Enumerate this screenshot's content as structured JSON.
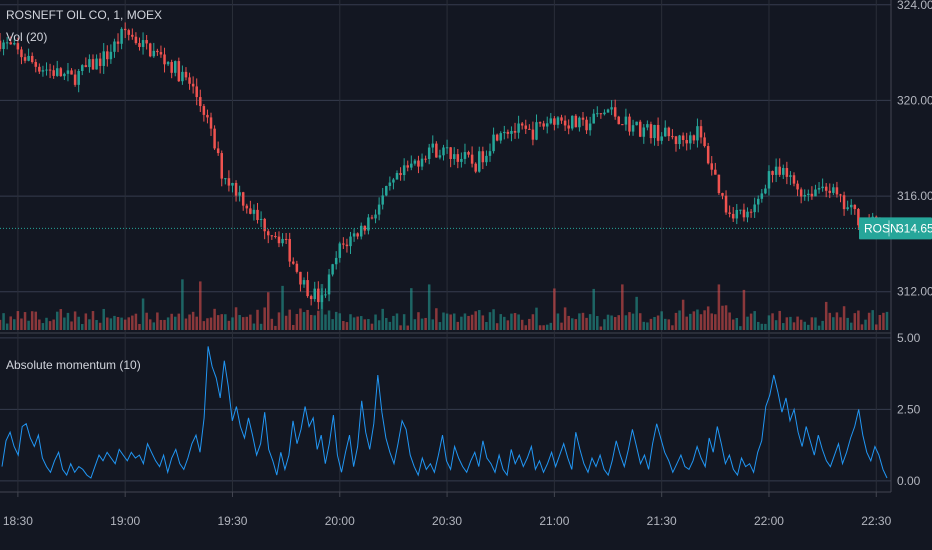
{
  "header": {
    "symbol_title": "ROSNEFT OIL CO, 1, MOEX",
    "volume_label": "Vol (20)"
  },
  "price_badge": {
    "symbol": "ROSN",
    "price": "314.65"
  },
  "indicator": {
    "label": "Absolute momentum (10)"
  },
  "colors": {
    "background": "#131722",
    "grid": "#363c4e",
    "axis_text": "#b2b5be",
    "up": "#26a69a",
    "down": "#ef5350",
    "momentum_line": "#2196f3",
    "badge": "#26a69a"
  },
  "chart_data": [
    {
      "type": "candlestick",
      "title": "ROSNEFT OIL CO, 1, MOEX",
      "y_ticks": [
        "324.00",
        "320.00",
        "316.00",
        "312.00"
      ],
      "ylim": [
        310.4,
        324.2
      ],
      "last_price": 314.65,
      "x_ticks": [
        "18:30",
        "19:00",
        "19:30",
        "20:00",
        "20:30",
        "21:00",
        "21:30",
        "22:00",
        "22:30"
      ],
      "time_range": [
        "18:25",
        "22:33"
      ],
      "close_anchors": [
        [
          "18:25",
          322.5
        ],
        [
          "18:35",
          321.5
        ],
        [
          "18:45",
          320.9
        ],
        [
          "18:55",
          321.9
        ],
        [
          "19:00",
          322.9
        ],
        [
          "19:05",
          322.3
        ],
        [
          "19:12",
          321.6
        ],
        [
          "19:18",
          320.7
        ],
        [
          "19:22",
          319.6
        ],
        [
          "19:27",
          317.0
        ],
        [
          "19:32",
          316.1
        ],
        [
          "19:37",
          315.0
        ],
        [
          "19:44",
          314.2
        ],
        [
          "19:50",
          312.3
        ],
        [
          "19:55",
          311.6
        ],
        [
          "20:00",
          313.8
        ],
        [
          "20:07",
          314.8
        ],
        [
          "20:15",
          316.5
        ],
        [
          "20:25",
          318.0
        ],
        [
          "20:33",
          317.7
        ],
        [
          "20:38",
          317.3
        ],
        [
          "20:45",
          318.9
        ],
        [
          "20:53",
          318.6
        ],
        [
          "21:00",
          319.3
        ],
        [
          "21:08",
          318.9
        ],
        [
          "21:15",
          319.6
        ],
        [
          "21:22",
          318.9
        ],
        [
          "21:30",
          318.6
        ],
        [
          "21:35",
          318.3
        ],
        [
          "21:40",
          318.7
        ],
        [
          "21:44",
          317.2
        ],
        [
          "21:48",
          315.5
        ],
        [
          "21:55",
          315.1
        ],
        [
          "22:00",
          317.0
        ],
        [
          "22:05",
          316.8
        ],
        [
          "22:10",
          316.1
        ],
        [
          "22:16",
          316.5
        ],
        [
          "22:20",
          315.7
        ],
        [
          "22:26",
          315.0
        ],
        [
          "22:33",
          314.65
        ]
      ]
    },
    {
      "type": "bar",
      "title": "Vol (20)",
      "note": "volume bars colored by candle direction"
    },
    {
      "type": "line",
      "title": "Absolute momentum (10)",
      "y_ticks": [
        "5.00",
        "2.50",
        "0.00"
      ],
      "ylim": [
        -0.25,
        5.1
      ],
      "values": [
        0.5,
        1.4,
        1.7,
        1.2,
        0.9,
        1.9,
        2.0,
        1.5,
        1.2,
        1.6,
        0.8,
        0.5,
        0.3,
        0.7,
        1.0,
        0.4,
        0.2,
        0.6,
        0.3,
        0.5,
        0.4,
        0.2,
        0.1,
        0.5,
        0.9,
        0.7,
        1.0,
        0.8,
        0.6,
        1.1,
        0.9,
        0.7,
        1.0,
        0.8,
        0.9,
        0.6,
        1.3,
        1.0,
        0.7,
        0.5,
        0.9,
        0.3,
        0.8,
        1.1,
        0.6,
        0.4,
        0.8,
        1.3,
        1.6,
        1.0,
        2.2,
        4.7,
        4.0,
        3.6,
        2.9,
        4.2,
        3.3,
        2.1,
        2.6,
        1.9,
        1.5,
        2.2,
        1.6,
        0.9,
        1.3,
        2.4,
        1.1,
        0.7,
        0.2,
        1.0,
        0.4,
        0.9,
        2.1,
        1.3,
        1.8,
        2.6,
        1.9,
        2.2,
        1.1,
        1.6,
        0.6,
        1.3,
        2.3,
        0.9,
        0.3,
        1.0,
        1.6,
        0.5,
        1.2,
        2.8,
        1.7,
        1.1,
        2.0,
        3.7,
        2.4,
        1.5,
        1.0,
        0.6,
        1.3,
        2.1,
        1.8,
        0.9,
        0.5,
        0.2,
        0.8,
        0.4,
        0.6,
        0.3,
        0.9,
        1.6,
        0.7,
        0.4,
        1.2,
        0.8,
        0.5,
        0.3,
        0.7,
        1.0,
        0.5,
        1.4,
        0.8,
        0.6,
        0.3,
        0.9,
        0.4,
        0.2,
        1.1,
        0.6,
        0.9,
        0.5,
        0.8,
        1.2,
        0.4,
        0.7,
        0.3,
        0.6,
        1.0,
        0.5,
        0.9,
        1.3,
        0.8,
        0.4,
        1.7,
        1.1,
        0.6,
        0.3,
        0.8,
        0.5,
        0.9,
        0.4,
        0.2,
        0.7,
        1.4,
        0.9,
        0.5,
        1.1,
        1.8,
        1.2,
        0.6,
        0.9,
        0.4,
        1.3,
        2.0,
        1.5,
        1.0,
        0.7,
        0.3,
        0.6,
        0.9,
        0.5,
        0.4,
        0.7,
        1.2,
        0.8,
        0.5,
        1.5,
        1.0,
        1.9,
        1.3,
        0.6,
        0.9,
        0.4,
        0.2,
        0.8,
        0.5,
        0.6,
        0.3,
        1.0,
        1.4,
        2.6,
        3.0,
        3.7,
        3.1,
        2.4,
        2.9,
        2.1,
        2.5,
        1.7,
        1.2,
        1.9,
        1.4,
        0.9,
        1.6,
        1.1,
        0.7,
        0.5,
        0.9,
        1.3,
        0.6,
        1.0,
        1.5,
        1.9,
        2.5,
        1.6,
        1.0,
        0.7,
        1.2,
        0.9,
        0.4,
        0.1
      ]
    }
  ]
}
